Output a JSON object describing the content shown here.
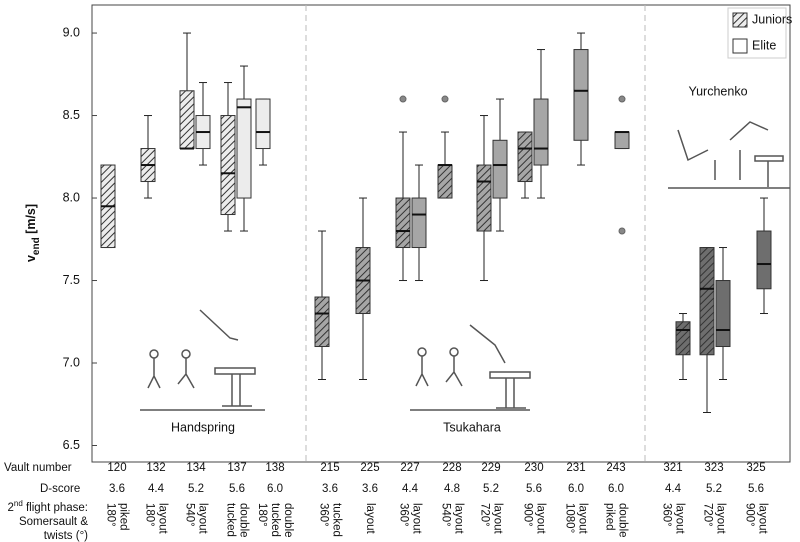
{
  "chart_data": {
    "type": "box",
    "ylabel": {
      "main": "v",
      "sub": "end",
      "unit": " [m/s]"
    },
    "ylim": [
      6.4,
      9.17
    ],
    "yticks": [
      6.5,
      {
        "value": 7,
        "label": "7.0"
      },
      7.5,
      {
        "value": 8,
        "label": "8.0"
      },
      8.5,
      {
        "value": 9,
        "label": "9.0"
      }
    ],
    "series": [
      {
        "name": "Juniors",
        "hatch": true
      },
      {
        "name": "Elite",
        "hatch": false
      }
    ],
    "legend": "upper right",
    "row_labels": {
      "vault": "Vault number",
      "d_score": "D-score",
      "flight": {
        "pre": "2",
        "sup": "nd",
        "post": " flight phase:",
        "lines": [
          "Somersault &",
          "twists (°)"
        ]
      }
    },
    "groups": [
      {
        "name": "Handspring",
        "color": "#ececec",
        "vaults": [
          {
            "number": 120,
            "d_score": "3.6",
            "flight": [
              "piked",
              "180°"
            ],
            "juniors": {
              "low": 7.7,
              "q1": 7.7,
              "median": 7.95,
              "q3": 8.2,
              "high": 8.2,
              "outliers": []
            }
          },
          {
            "number": 132,
            "d_score": "4.4",
            "flight": [
              "layout",
              "180°"
            ],
            "juniors": {
              "low": 8.0,
              "q1": 8.1,
              "median": 8.2,
              "q3": 8.3,
              "high": 8.5,
              "outliers": []
            }
          },
          {
            "number": 134,
            "d_score": "5.2",
            "flight": [
              "layout",
              "540°"
            ],
            "juniors": {
              "low": 8.3,
              "q1": 8.3,
              "median": 8.3,
              "q3": 8.65,
              "high": 9.0,
              "outliers": []
            },
            "elite": {
              "low": 8.2,
              "q1": 8.3,
              "median": 8.4,
              "q3": 8.5,
              "high": 8.7,
              "outliers": []
            }
          },
          {
            "number": 137,
            "d_score": "5.6",
            "flight": [
              "double",
              "tucked"
            ],
            "juniors": {
              "low": 7.8,
              "q1": 7.9,
              "median": 8.15,
              "q3": 8.5,
              "high": 8.7,
              "outliers": []
            },
            "elite": {
              "low": 7.8,
              "q1": 8.0,
              "median": 8.55,
              "q3": 8.6,
              "high": 8.8,
              "outliers": []
            }
          },
          {
            "number": 138,
            "d_score": "6.0",
            "flight": [
              "double",
              "tucked",
              "180°"
            ],
            "elite": {
              "low": 8.2,
              "q1": 8.3,
              "median": 8.4,
              "q3": 8.6,
              "high": 8.6,
              "outliers": []
            }
          }
        ]
      },
      {
        "name": "Tsukahara",
        "color": "#a6a6a6",
        "vaults": [
          {
            "number": 215,
            "d_score": "3.6",
            "flight": [
              "tucked",
              "360°"
            ],
            "juniors": {
              "low": 6.9,
              "q1": 7.1,
              "median": 7.3,
              "q3": 7.4,
              "high": 7.8,
              "outliers": []
            }
          },
          {
            "number": 225,
            "d_score": "3.6",
            "flight": [
              "layout"
            ],
            "juniors": {
              "low": 6.9,
              "q1": 7.3,
              "median": 7.5,
              "q3": 7.7,
              "high": 8.0,
              "outliers": []
            }
          },
          {
            "number": 227,
            "d_score": "4.4",
            "flight": [
              "layout",
              "360°"
            ],
            "juniors": {
              "low": 7.5,
              "q1": 7.7,
              "median": 7.8,
              "q3": 8.0,
              "high": 8.4,
              "outliers": [
                8.6
              ]
            },
            "elite": {
              "low": 7.5,
              "q1": 7.7,
              "median": 7.9,
              "q3": 8.0,
              "high": 8.2,
              "outliers": []
            }
          },
          {
            "number": 228,
            "d_score": "4.8",
            "flight": [
              "layout",
              "540°"
            ],
            "juniors": {
              "low": 8.0,
              "q1": 8.0,
              "median": 8.2,
              "q3": 8.2,
              "high": 8.4,
              "outliers": [
                8.6
              ]
            }
          },
          {
            "number": 229,
            "d_score": "5.2",
            "flight": [
              "layout",
              "720°"
            ],
            "juniors": {
              "low": 7.5,
              "q1": 7.8,
              "median": 8.1,
              "q3": 8.2,
              "high": 8.5,
              "outliers": []
            },
            "elite": {
              "low": 7.8,
              "q1": 8.0,
              "median": 8.2,
              "q3": 8.35,
              "high": 8.6,
              "outliers": []
            }
          },
          {
            "number": 230,
            "d_score": "5.6",
            "flight": [
              "layout",
              "900°"
            ],
            "juniors": {
              "low": 8.0,
              "q1": 8.1,
              "median": 8.3,
              "q3": 8.4,
              "high": 8.4,
              "outliers": []
            },
            "elite": {
              "low": 8.0,
              "q1": 8.2,
              "median": 8.3,
              "q3": 8.6,
              "high": 8.9,
              "outliers": []
            }
          },
          {
            "number": 231,
            "d_score": "6.0",
            "flight": [
              "layout",
              "1080°"
            ],
            "elite": {
              "low": 8.2,
              "q1": 8.35,
              "median": 8.65,
              "q3": 8.9,
              "high": 9.0,
              "outliers": []
            }
          },
          {
            "number": 243,
            "d_score": "6.0",
            "flight": [
              "double",
              "piked"
            ],
            "elite": {
              "low": 8.3,
              "q1": 8.3,
              "median": 8.4,
              "q3": 8.4,
              "high": 8.4,
              "outliers": [
                8.6,
                7.8
              ]
            }
          }
        ]
      },
      {
        "name": "Yurchenko",
        "color": "#6e6e6e",
        "vaults": [
          {
            "number": 321,
            "d_score": "4.4",
            "flight": [
              "layout",
              "360°"
            ],
            "juniors": {
              "low": 6.9,
              "q1": 7.05,
              "median": 7.2,
              "q3": 7.25,
              "high": 7.3,
              "outliers": []
            }
          },
          {
            "number": 323,
            "d_score": "5.2",
            "flight": [
              "layout",
              "720°"
            ],
            "juniors": {
              "low": 6.7,
              "q1": 7.05,
              "median": 7.45,
              "q3": 7.7,
              "high": 7.7,
              "outliers": []
            },
            "elite": {
              "low": 6.9,
              "q1": 7.1,
              "median": 7.2,
              "q3": 7.5,
              "high": 7.7,
              "outliers": []
            }
          },
          {
            "number": 325,
            "d_score": "5.6",
            "flight": [
              "layout",
              "900°"
            ],
            "elite": {
              "low": 7.3,
              "q1": 7.45,
              "median": 7.6,
              "q3": 7.8,
              "high": 8.0,
              "outliers": []
            }
          }
        ]
      }
    ]
  }
}
